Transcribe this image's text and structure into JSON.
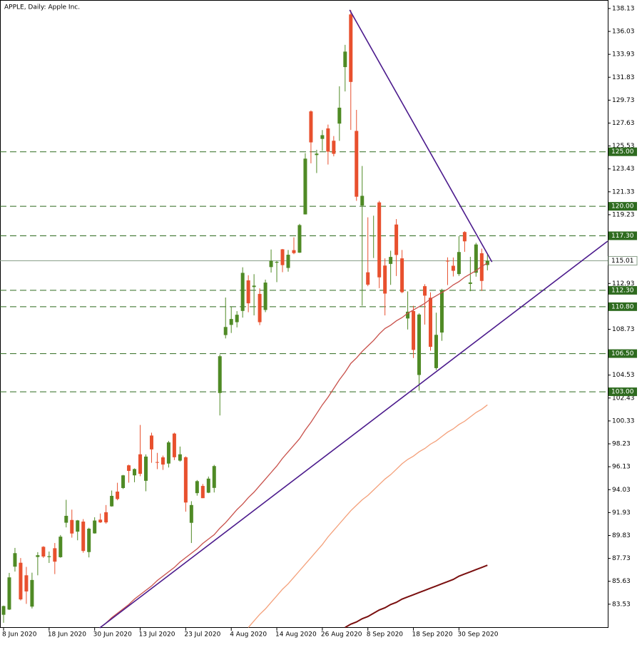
{
  "chart_data": {
    "type": "candlestick",
    "title": "APPLE, Daily:  Apple Inc.",
    "categories": [
      "8 Jun 2020",
      null,
      null,
      null,
      null,
      null,
      null,
      null,
      "18 Jun 2020",
      null,
      null,
      null,
      null,
      null,
      null,
      null,
      "30 Jun 2020",
      null,
      null,
      null,
      null,
      null,
      null,
      null,
      "13 Jul 2020",
      null,
      null,
      null,
      null,
      null,
      null,
      null,
      "23 Jul 2020",
      null,
      null,
      null,
      null,
      null,
      null,
      null,
      "4 Aug 2020",
      null,
      null,
      null,
      null,
      null,
      null,
      null,
      "14 Aug 2020",
      null,
      null,
      null,
      null,
      null,
      null,
      null,
      "26 Aug 2020",
      null,
      null,
      null,
      null,
      null,
      null,
      null,
      "8 Sep 2020",
      null,
      null,
      null,
      null,
      null,
      null,
      null,
      "18 Sep 2020",
      null,
      null,
      null,
      null,
      null,
      null,
      null,
      "30 Sep 2020",
      null,
      null,
      null,
      null,
      null
    ],
    "open": [
      82.56,
      83.04,
      86.97,
      87.33,
      86.18,
      83.31,
      87.86,
      88.79,
      87.85,
      88.66,
      87.84,
      91.0,
      91.25,
      90.18,
      91.1,
      88.31,
      90.02,
      91.28,
      91.96,
      92.5,
      93.85,
      94.18,
      96.26,
      95.34,
      97.27,
      94.84,
      98.99,
      96.56,
      96.99,
      96.42,
      99.17,
      96.69,
      97.0,
      90.99,
      93.71,
      94.37,
      93.75,
      94.19,
      102.89,
      108.2,
      109.13,
      109.38,
      110.41,
      113.21,
      112.6,
      111.97,
      110.5,
      114.43,
      114.83,
      116.06,
      114.35,
      115.98,
      115.75,
      119.26,
      128.7,
      124.7,
      126.18,
      127.14,
      126.01,
      127.58,
      132.76,
      137.59,
      126.91,
      120.07,
      113.95,
      117.26,
      120.36,
      114.57,
      114.72,
      118.33,
      115.23,
      109.72,
      110.4,
      104.54,
      112.68,
      111.62,
      105.17,
      108.43,
      115.01,
      114.55,
      113.79,
      117.64,
      112.89,
      113.91,
      115.7,
      114.62
    ],
    "high": [
      83.4,
      86.4,
      88.69,
      87.76,
      86.95,
      86.42,
      88.3,
      88.85,
      88.36,
      89.14,
      89.87,
      93.1,
      92.2,
      91.25,
      91.33,
      90.54,
      91.5,
      91.84,
      92.62,
      93.95,
      94.66,
      95.38,
      96.32,
      95.98,
      99.96,
      97.26,
      99.25,
      97.4,
      97.15,
      98.5,
      99.25,
      97.98,
      97.08,
      92.97,
      94.91,
      94.55,
      95.23,
      96.3,
      106.42,
      111.64,
      110.79,
      110.39,
      114.41,
      113.68,
      113.78,
      112.48,
      113.28,
      116.04,
      115.0,
      116.09,
      116.0,
      117.16,
      118.39,
      124.87,
      128.79,
      125.18,
      126.99,
      127.49,
      126.44,
      131.0,
      134.8,
      137.98,
      128.84,
      123.7,
      118.99,
      119.14,
      120.5,
      115.23,
      115.93,
      118.83,
      116.0,
      112.2,
      110.88,
      110.19,
      112.86,
      112.11,
      110.25,
      112.44,
      115.32,
      115.31,
      117.26,
      117.72,
      115.37,
      116.65,
      116.12,
      115.55
    ],
    "low": [
      81.83,
      83.0,
      86.52,
      83.87,
      83.56,
      83.14,
      86.18,
      87.77,
      87.31,
      86.29,
      87.79,
      90.57,
      89.63,
      89.39,
      88.25,
      87.82,
      90.0,
      90.98,
      90.91,
      92.47,
      93.06,
      94.09,
      94.67,
      94.71,
      95.26,
      93.88,
      96.49,
      95.91,
      95.84,
      96.06,
      96.74,
      96.6,
      92.01,
      89.14,
      93.48,
      93.25,
      93.71,
      93.77,
      100.83,
      107.89,
      108.39,
      108.9,
      109.8,
      110.29,
      110.0,
      109.11,
      110.3,
      113.93,
      113.05,
      113.96,
      114.01,
      115.61,
      115.73,
      119.25,
      123.94,
      123.05,
      125.08,
      123.83,
      124.58,
      126.0,
      130.53,
      127.0,
      120.5,
      110.89,
      112.68,
      115.26,
      112.5,
      110.0,
      112.8,
      113.61,
      112.04,
      108.71,
      106.09,
      103.1,
      109.16,
      106.77,
      105.0,
      107.67,
      112.78,
      113.57,
      113.62,
      115.83,
      112.22,
      113.55,
      112.25,
      114.13
    ],
    "close": [
      83.36,
      85.99,
      88.21,
      83.97,
      84.7,
      85.75,
      88.02,
      87.9,
      87.93,
      87.43,
      89.72,
      91.63,
      90.01,
      91.21,
      88.41,
      90.45,
      91.2,
      91.03,
      91.03,
      93.46,
      93.17,
      95.34,
      95.75,
      95.92,
      95.48,
      97.06,
      97.72,
      96.52,
      96.33,
      98.36,
      97.0,
      97.27,
      92.85,
      92.62,
      94.81,
      93.25,
      95.04,
      96.19,
      106.26,
      108.94,
      109.67,
      110.06,
      113.9,
      111.11,
      112.73,
      109.38,
      113.01,
      115.01,
      114.91,
      114.61,
      115.56,
      115.71,
      118.28,
      124.37,
      125.86,
      124.83,
      126.52,
      125.01,
      124.81,
      129.04,
      134.18,
      131.4,
      120.88,
      120.96,
      112.82,
      117.32,
      113.49,
      112.0,
      115.36,
      115.54,
      112.13,
      110.34,
      106.84,
      110.08,
      111.81,
      107.12,
      108.22,
      112.28,
      114.96,
      114.09,
      115.81,
      116.79,
      113.02,
      116.5,
      113.16,
      115.01
    ],
    "up_color": "#4f8a25",
    "down_color": "#e8502e",
    "moving_averages": [
      {
        "color": "#c8504a",
        "values": [
          null,
          null,
          null,
          null,
          null,
          null,
          null,
          null,
          null,
          null,
          null,
          null,
          null,
          null,
          null,
          null,
          null,
          81.4,
          81.8,
          82.3,
          82.7,
          83.1,
          83.5,
          84.0,
          84.4,
          84.8,
          85.2,
          85.7,
          86.1,
          86.5,
          86.9,
          87.4,
          87.8,
          88.2,
          88.6,
          89.1,
          89.5,
          89.9,
          90.5,
          91.0,
          91.6,
          92.2,
          92.7,
          93.3,
          93.8,
          94.4,
          95.0,
          95.6,
          96.2,
          96.9,
          97.5,
          98.1,
          98.7,
          99.5,
          100.2,
          101.0,
          101.8,
          102.5,
          103.3,
          104.1,
          104.8,
          105.6,
          106.1,
          106.7,
          107.2,
          107.7,
          108.3,
          108.8,
          109.1,
          109.5,
          109.8,
          110.2,
          110.5,
          110.8,
          111.1,
          111.5,
          111.8,
          112.1,
          112.4,
          112.8,
          113.1,
          113.5,
          113.8,
          114.1,
          114.5,
          114.8
        ]
      },
      {
        "color": "#f4a07a",
        "values": [
          null,
          null,
          null,
          null,
          null,
          null,
          null,
          null,
          null,
          null,
          null,
          null,
          null,
          null,
          null,
          null,
          null,
          null,
          null,
          null,
          null,
          null,
          null,
          null,
          null,
          null,
          null,
          null,
          null,
          null,
          null,
          null,
          null,
          null,
          null,
          null,
          null,
          null,
          null,
          null,
          null,
          null,
          null,
          81.4,
          82.0,
          82.6,
          83.1,
          83.7,
          84.3,
          84.9,
          85.4,
          86.0,
          86.6,
          87.2,
          87.8,
          88.4,
          89.0,
          89.7,
          90.3,
          90.9,
          91.5,
          92.1,
          92.6,
          93.1,
          93.5,
          94.0,
          94.5,
          95.0,
          95.4,
          95.9,
          96.4,
          96.8,
          97.1,
          97.5,
          97.8,
          98.2,
          98.5,
          98.9,
          99.3,
          99.6,
          100.0,
          100.3,
          100.7,
          101.1,
          101.4,
          101.8
        ]
      },
      {
        "color": "#7a0f0f",
        "values": [
          null,
          null,
          null,
          null,
          null,
          null,
          null,
          null,
          null,
          null,
          null,
          null,
          null,
          null,
          null,
          null,
          null,
          null,
          null,
          null,
          null,
          null,
          null,
          null,
          null,
          null,
          null,
          null,
          null,
          null,
          null,
          null,
          null,
          null,
          null,
          null,
          null,
          null,
          null,
          null,
          null,
          null,
          null,
          null,
          null,
          null,
          null,
          null,
          null,
          null,
          null,
          null,
          null,
          null,
          null,
          null,
          null,
          null,
          null,
          null,
          81.4,
          81.7,
          81.9,
          82.2,
          82.4,
          82.7,
          83.0,
          83.2,
          83.5,
          83.7,
          84.0,
          84.2,
          84.4,
          84.6,
          84.8,
          85.0,
          85.2,
          85.4,
          85.6,
          85.8,
          86.1,
          86.3,
          86.5,
          86.7,
          86.9,
          87.1
        ]
      }
    ],
    "trendlines": [
      {
        "color": "#4b1a8c",
        "x": [
          60.8,
          85.8
        ],
        "y": [
          138.0,
          114.9
        ]
      },
      {
        "color": "#4b1a8c",
        "x": [
          16.9,
          106.1
        ],
        "y": [
          81.36,
          116.8
        ]
      }
    ],
    "levels": [
      {
        "value": 125,
        "label": "125.00"
      },
      {
        "value": 120,
        "label": "120.00"
      },
      {
        "value": 117.3,
        "label": "117.30"
      },
      {
        "value": 112.3,
        "label": "112.30"
      },
      {
        "value": 110.8,
        "label": "110.80"
      },
      {
        "value": 106.5,
        "label": "106.50"
      },
      {
        "value": 103,
        "label": "103.00"
      }
    ],
    "level_color": "#2e6b1f",
    "last_price": 115.01,
    "ylim": [
      81.36,
      138.91
    ],
    "yticks": [
      138.13,
      136.03,
      133.93,
      131.83,
      129.73,
      127.63,
      125.53,
      123.43,
      121.33,
      119.23,
      112.93,
      108.73,
      104.53,
      102.43,
      100.33,
      98.23,
      96.13,
      94.03,
      91.93,
      89.83,
      87.73,
      85.63,
      83.53
    ]
  }
}
